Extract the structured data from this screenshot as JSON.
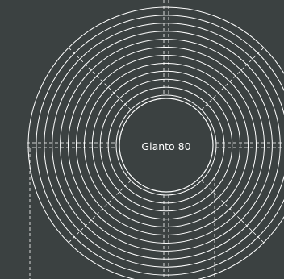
{
  "diagram": {
    "label": "Gianto 80",
    "colors": {
      "background": "#3b4141",
      "stroke": "#ffffff"
    },
    "ring_count": 12
  }
}
